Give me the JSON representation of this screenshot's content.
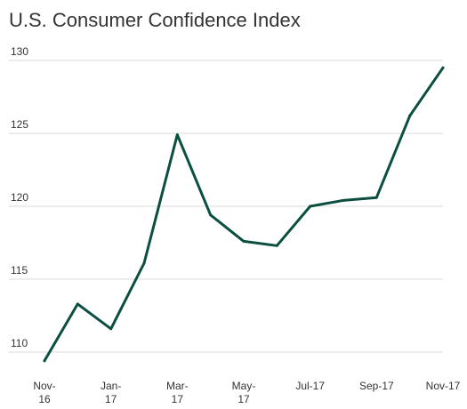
{
  "chart_data": {
    "type": "line",
    "title": "U.S. Consumer Confidence Index",
    "xlabel": "",
    "ylabel": "",
    "x": [
      "Nov-16",
      "Dec-16",
      "Jan-17",
      "Feb-17",
      "Mar-17",
      "Apr-17",
      "May-17",
      "Jun-17",
      "Jul-17",
      "Aug-17",
      "Sep-17",
      "Oct-17",
      "Nov-17"
    ],
    "x_tick_labels": [
      {
        "index": 0,
        "lines": [
          "Nov-",
          "16"
        ]
      },
      {
        "index": 2,
        "lines": [
          "Jan-",
          "17"
        ]
      },
      {
        "index": 4,
        "lines": [
          "Mar-",
          "17"
        ]
      },
      {
        "index": 6,
        "lines": [
          "May-",
          "17"
        ]
      },
      {
        "index": 8,
        "lines": [
          "Jul-17"
        ]
      },
      {
        "index": 10,
        "lines": [
          "Sep-17"
        ]
      },
      {
        "index": 12,
        "lines": [
          "Nov-17"
        ]
      }
    ],
    "series": [
      {
        "values": [
          109.4,
          113.3,
          111.6,
          116.1,
          124.9,
          119.4,
          117.6,
          117.3,
          120.0,
          120.4,
          120.6,
          126.2,
          129.5
        ]
      }
    ],
    "ylim": [
      109,
      130
    ],
    "yticks": [
      110,
      115,
      120,
      125,
      130
    ],
    "grid": true,
    "legend": "none",
    "colors": {
      "line": "#0b4f40",
      "grid": "#d9d9d9",
      "text": "#333333"
    }
  }
}
